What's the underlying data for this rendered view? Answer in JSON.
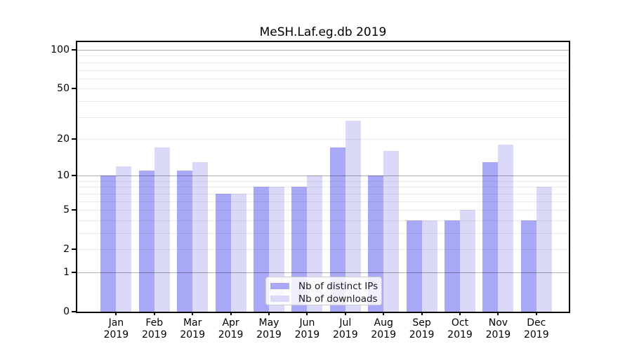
{
  "title": "MeSH.Laf.eg.db 2019",
  "colors": {
    "series_colors": [
      "#a8a8f6",
      "#dadaf8"
    ],
    "grid_major": "rgba(0,0,0,0.32)",
    "grid_minor": "rgba(0,0,0,0.075)",
    "axis": "#000000",
    "background": "#ffffff"
  },
  "y_axis": {
    "ticks": [
      {
        "label": "100",
        "value": 100
      },
      {
        "label": "50",
        "value": 50
      },
      {
        "label": "20",
        "value": 20
      },
      {
        "label": "10",
        "value": 10
      },
      {
        "label": "5",
        "value": 5
      },
      {
        "label": "2",
        "value": 2
      },
      {
        "label": "1",
        "value": 1
      },
      {
        "label": "0",
        "value": 0
      }
    ],
    "major_grid_values": [
      1,
      10,
      100
    ],
    "minor_grid_values": [
      2,
      3,
      4,
      5,
      6,
      7,
      8,
      9,
      20,
      30,
      40,
      50,
      60,
      70,
      80,
      90
    ]
  },
  "x_axis": {
    "months": [
      "Jan",
      "Feb",
      "Mar",
      "Apr",
      "May",
      "Jun",
      "Jul",
      "Aug",
      "Sep",
      "Oct",
      "Nov",
      "Dec"
    ],
    "year": "2019"
  },
  "legend": {
    "items": [
      {
        "label": "Nb of distinct IPs"
      },
      {
        "label": "Nb of downloads"
      }
    ]
  },
  "chart_data": {
    "type": "bar",
    "title": "MeSH.Laf.eg.db 2019",
    "categories": [
      "Jan 2019",
      "Feb 2019",
      "Mar 2019",
      "Apr 2019",
      "May 2019",
      "Jun 2019",
      "Jul 2019",
      "Aug 2019",
      "Sep 2019",
      "Oct 2019",
      "Nov 2019",
      "Dec 2019"
    ],
    "series": [
      {
        "name": "Nb of distinct IPs",
        "values": [
          10,
          11,
          11,
          7,
          8,
          8,
          17,
          10,
          4,
          4,
          13,
          4
        ]
      },
      {
        "name": "Nb of downloads",
        "values": [
          12,
          17,
          13,
          7,
          8,
          10,
          28,
          16,
          4,
          5,
          18,
          8
        ]
      }
    ],
    "y_scale": "log10(1+y)",
    "y_ticks": [
      0,
      1,
      2,
      5,
      10,
      20,
      50,
      100
    ],
    "ylim": [
      0,
      115
    ],
    "grid": true,
    "grid_on_top": true,
    "legend_position": "lower center"
  }
}
